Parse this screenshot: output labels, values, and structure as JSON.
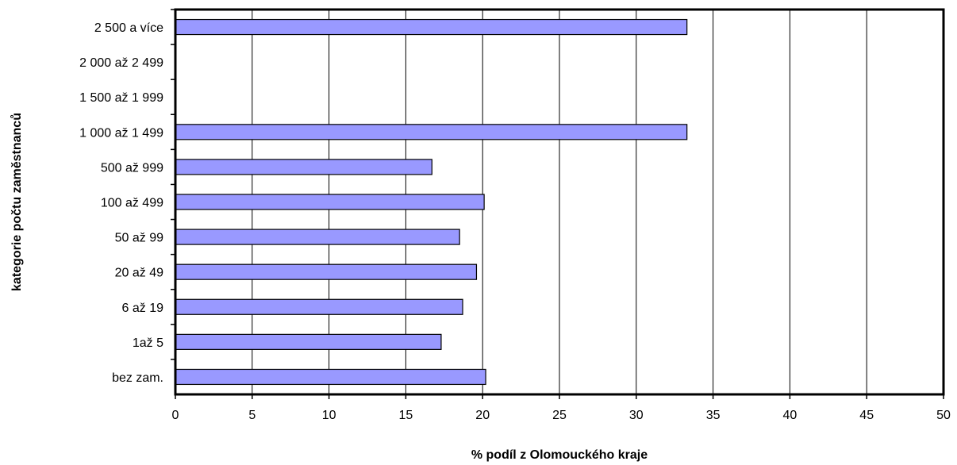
{
  "chart_data": {
    "type": "bar",
    "orientation": "horizontal",
    "categories": [
      "2 500 a více",
      "2 000 až 2 499",
      "1 500 až 1 999",
      "1 000 až 1 499",
      "500 až 999",
      "100 až 499",
      "50 až 99",
      "20 až 49",
      "6 až 19",
      "1až 5",
      "bez zam."
    ],
    "values": [
      33.3,
      0,
      0,
      33.3,
      16.7,
      20.1,
      18.5,
      19.6,
      18.7,
      17.3,
      20.2
    ],
    "title": "",
    "xlabel": "% podíl z Olomouckého kraje",
    "ylabel": "kategorie počtu zaměstnanců",
    "xlim": [
      0,
      50
    ],
    "xticks": [
      "0",
      "5",
      "10",
      "15",
      "20",
      "25",
      "30",
      "35",
      "40",
      "45",
      "50"
    ],
    "grid": "vertical",
    "legend": "none",
    "bar_color": "#9999ff",
    "bar_edge_color": "#000000"
  }
}
